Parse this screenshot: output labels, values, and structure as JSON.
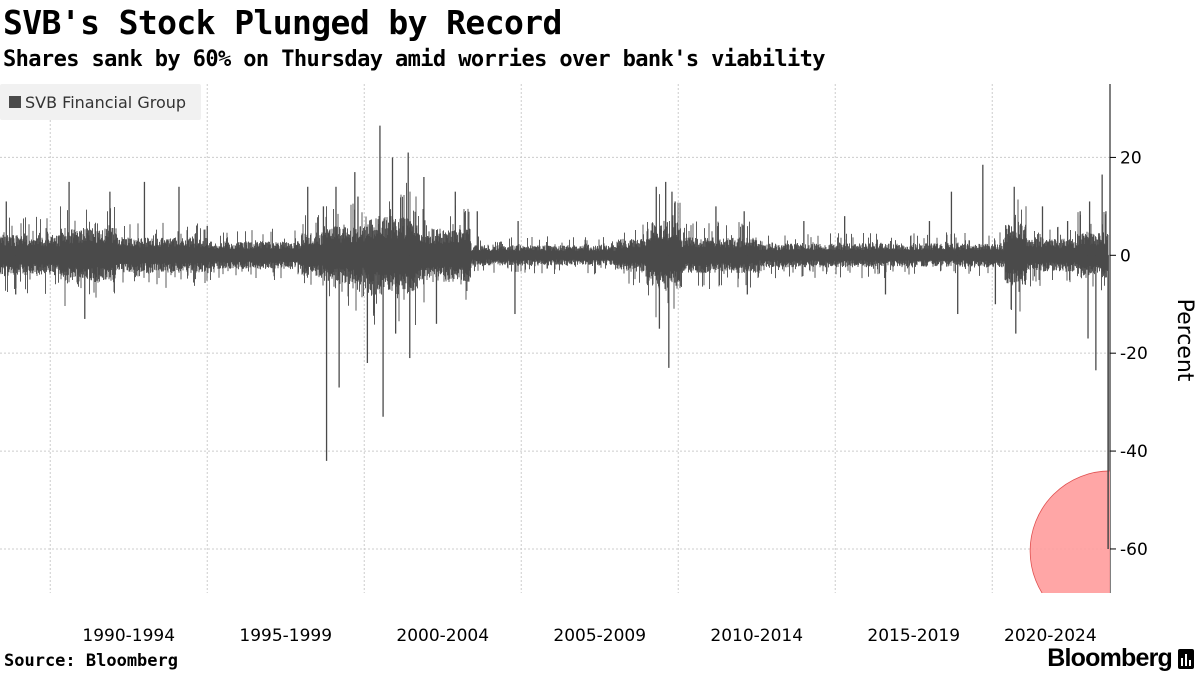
{
  "header": {
    "title": "SVB's Stock Plunged by Record",
    "subtitle": "Shares sank by 60% on Thursday amid worries over bank's viability"
  },
  "footer": {
    "source": "Source: Bloomberg",
    "brand": "Bloomberg"
  },
  "colors": {
    "series": "#4a4a4a",
    "highlight": "#ff9c9c",
    "highlight_border": "#e05050",
    "grid": "#cccccc",
    "legend_bg": "#f1f1f1"
  },
  "chart_data": {
    "type": "bar",
    "ylabel": "Percent",
    "ylim": [
      -69,
      35
    ],
    "yticks": [
      20,
      0,
      -20,
      -40,
      -60
    ],
    "xlim": [
      1987.9,
      2023.25
    ],
    "grid": true,
    "legend_position": "top-left",
    "y_axis_side": "right",
    "x_period_labels": [
      {
        "label": "1990-1994",
        "start": 1989.5,
        "end": 1994.5
      },
      {
        "label": "1995-1999",
        "start": 1994.5,
        "end": 1999.5
      },
      {
        "label": "2000-2004",
        "start": 1999.5,
        "end": 2004.5
      },
      {
        "label": "2005-2009",
        "start": 2004.5,
        "end": 2009.5
      },
      {
        "label": "2010-2014",
        "start": 2009.5,
        "end": 2014.5
      },
      {
        "label": "2015-2019",
        "start": 2014.5,
        "end": 2019.5
      },
      {
        "label": "2020-2024",
        "start": 2019.5,
        "end": 2023.2
      }
    ],
    "x_gridlines": [
      1989.5,
      1994.5,
      1999.5,
      2004.5,
      2009.5,
      2014.5,
      2019.5
    ],
    "series": [
      {
        "name": "SVB Financial Group",
        "description": "daily percent change of share price",
        "volatility_regimes": [
          {
            "start": 1987.9,
            "end": 1989.8,
            "amplitude": 3.2
          },
          {
            "start": 1989.8,
            "end": 1991.6,
            "amplitude": 4.3
          },
          {
            "start": 1991.6,
            "end": 1994.5,
            "amplitude": 2.8
          },
          {
            "start": 1994.5,
            "end": 1997.5,
            "amplitude": 2.2
          },
          {
            "start": 1997.5,
            "end": 1998.2,
            "amplitude": 3.6
          },
          {
            "start": 1998.2,
            "end": 1999.5,
            "amplitude": 4.6
          },
          {
            "start": 1999.5,
            "end": 2001.2,
            "amplitude": 6.2
          },
          {
            "start": 2001.2,
            "end": 2002.9,
            "amplitude": 4.2
          },
          {
            "start": 2002.9,
            "end": 2007.5,
            "amplitude": 1.6
          },
          {
            "start": 2007.5,
            "end": 2008.5,
            "amplitude": 2.6
          },
          {
            "start": 2008.5,
            "end": 2009.6,
            "amplitude": 5.4
          },
          {
            "start": 2009.6,
            "end": 2012.0,
            "amplitude": 2.8
          },
          {
            "start": 2012.0,
            "end": 2019.9,
            "amplitude": 1.9
          },
          {
            "start": 2019.9,
            "end": 2020.6,
            "amplitude": 4.8
          },
          {
            "start": 2020.6,
            "end": 2022.2,
            "amplitude": 2.6
          },
          {
            "start": 2022.2,
            "end": 2023.2,
            "amplitude": 3.6
          }
        ],
        "notable_values": [
          {
            "x": 1988.1,
            "y": 11
          },
          {
            "x": 1988.4,
            "y": -8
          },
          {
            "x": 1990.1,
            "y": 15
          },
          {
            "x": 1990.6,
            "y": -13
          },
          {
            "x": 1991.4,
            "y": 13
          },
          {
            "x": 1992.5,
            "y": 15
          },
          {
            "x": 1993.6,
            "y": 14
          },
          {
            "x": 1994.5,
            "y": 6
          },
          {
            "x": 1997.7,
            "y": 14
          },
          {
            "x": 1998.2,
            "y": 10
          },
          {
            "x": 1998.3,
            "y": -42
          },
          {
            "x": 1998.6,
            "y": 14
          },
          {
            "x": 1998.7,
            "y": -27
          },
          {
            "x": 1999.2,
            "y": 17
          },
          {
            "x": 1999.3,
            "y": 12
          },
          {
            "x": 1999.6,
            "y": -22
          },
          {
            "x": 2000.0,
            "y": 26.5
          },
          {
            "x": 2000.1,
            "y": -33
          },
          {
            "x": 2000.4,
            "y": 20
          },
          {
            "x": 2000.5,
            "y": -16
          },
          {
            "x": 2000.9,
            "y": 21
          },
          {
            "x": 2000.95,
            "y": -21
          },
          {
            "x": 2001.4,
            "y": 16
          },
          {
            "x": 2001.8,
            "y": -14
          },
          {
            "x": 2002.4,
            "y": 13
          },
          {
            "x": 2003.1,
            "y": 9
          },
          {
            "x": 2004.3,
            "y": -12
          },
          {
            "x": 2004.4,
            "y": 7
          },
          {
            "x": 2008.8,
            "y": 14
          },
          {
            "x": 2008.9,
            "y": -15
          },
          {
            "x": 2009.1,
            "y": 15
          },
          {
            "x": 2009.2,
            "y": -23
          },
          {
            "x": 2009.3,
            "y": 13
          },
          {
            "x": 2009.4,
            "y": 11
          },
          {
            "x": 2010.7,
            "y": 10
          },
          {
            "x": 2011.6,
            "y": 9
          },
          {
            "x": 2011.7,
            "y": -8
          },
          {
            "x": 2013.5,
            "y": 7
          },
          {
            "x": 2014.8,
            "y": 8
          },
          {
            "x": 2016.1,
            "y": -8
          },
          {
            "x": 2017.5,
            "y": 7
          },
          {
            "x": 2018.2,
            "y": 13
          },
          {
            "x": 2018.4,
            "y": -12
          },
          {
            "x": 2019.2,
            "y": 18.5
          },
          {
            "x": 2019.6,
            "y": -10
          },
          {
            "x": 2020.2,
            "y": 14
          },
          {
            "x": 2020.25,
            "y": -16
          },
          {
            "x": 2021.1,
            "y": 10
          },
          {
            "x": 2021.9,
            "y": 7
          },
          {
            "x": 2022.3,
            "y": 9
          },
          {
            "x": 2022.55,
            "y": -17
          },
          {
            "x": 2022.6,
            "y": 11
          },
          {
            "x": 2022.8,
            "y": -23.5
          },
          {
            "x": 2023.0,
            "y": 16.5
          },
          {
            "x": 2023.12,
            "y": 9
          },
          {
            "x": 2023.19,
            "y": -60
          }
        ]
      }
    ],
    "highlight": {
      "x": 2023.19,
      "y": -60
    }
  }
}
